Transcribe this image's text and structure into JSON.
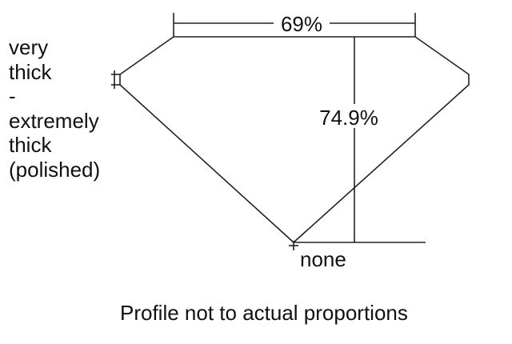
{
  "girdle_label": [
    "very",
    "thick",
    "-",
    "extremely",
    "thick",
    "(polished)"
  ],
  "table_label": "69%",
  "depth_label": "74.9%",
  "culet_label": "none",
  "caption": "Profile not to actual proportions",
  "colors": {
    "line": "#222222",
    "background": "#ffffff"
  }
}
